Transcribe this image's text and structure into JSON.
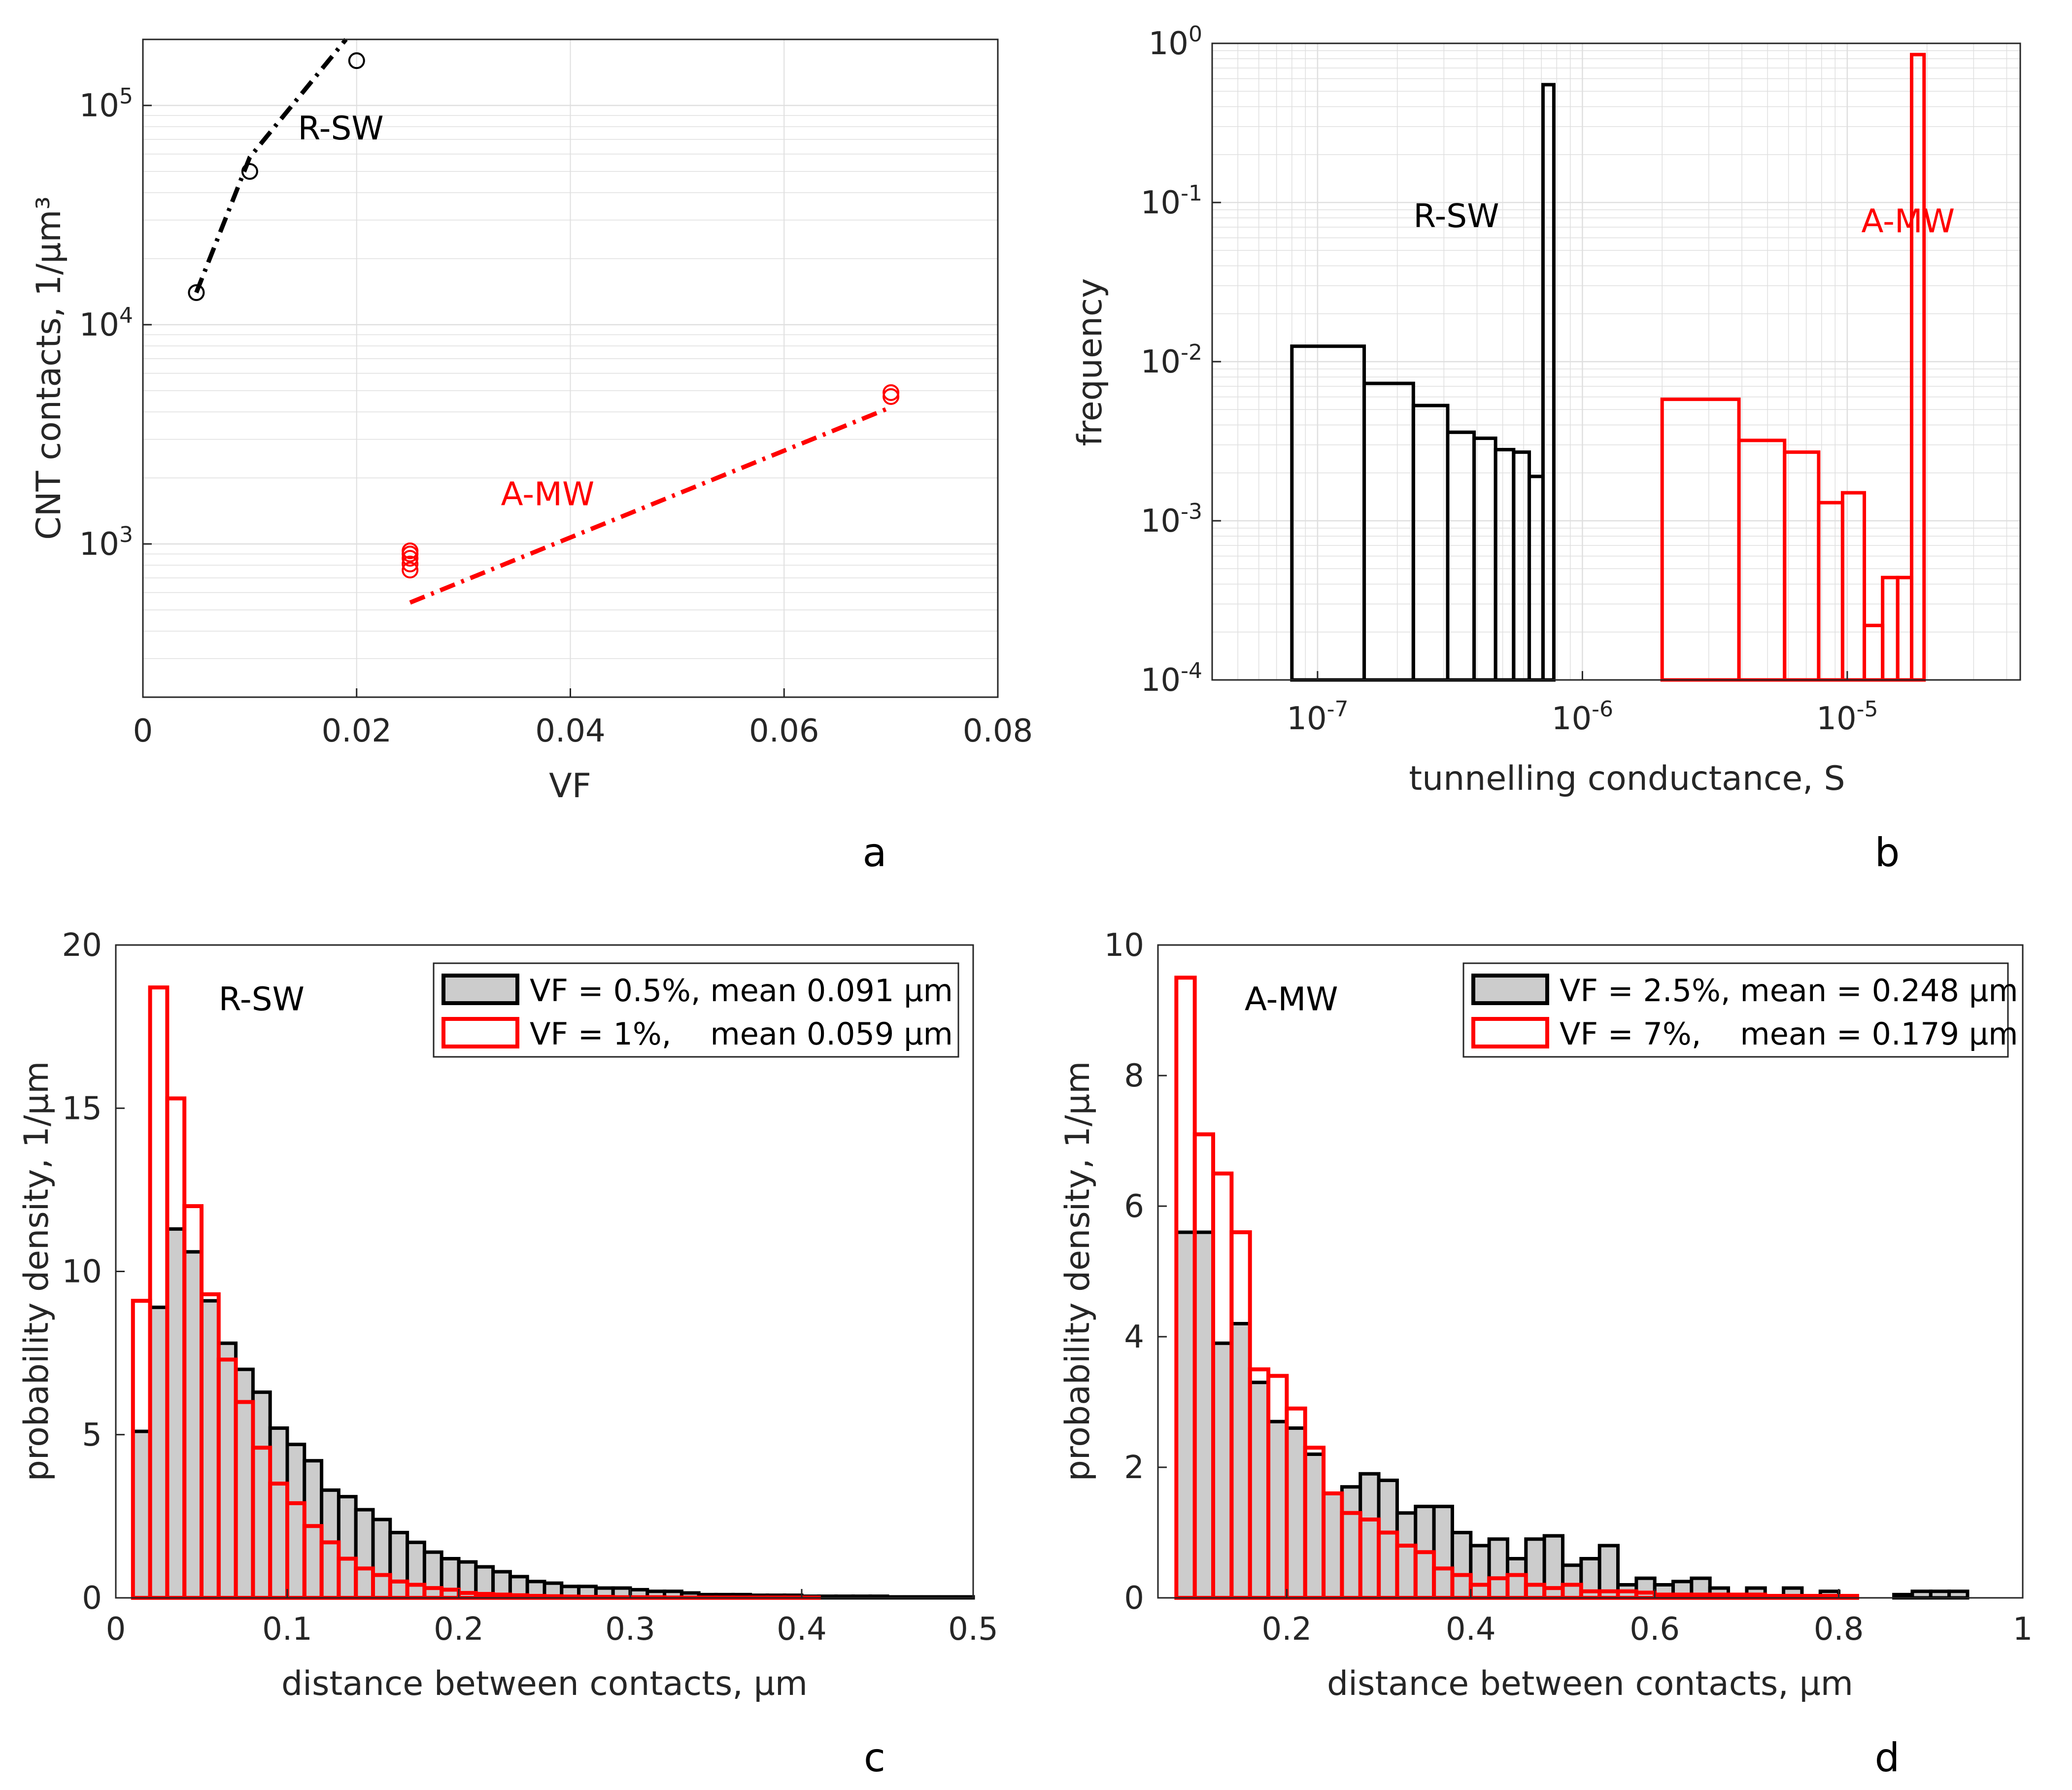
{
  "colors": {
    "black": "#000000",
    "red": "#ff0000",
    "grid": "#dfdfdf",
    "fill": "#cccccc"
  },
  "panel_labels": [
    "a",
    "b",
    "c",
    "d"
  ],
  "chart_data": [
    {
      "panel": "a",
      "type": "scatter",
      "xlabel": "VF",
      "ylabel": "CNT contacts, 1/µm³",
      "xlim": [
        0,
        0.08
      ],
      "ylim": [
        200,
        200000
      ],
      "yscale": "log",
      "grid": true,
      "xticks": [
        0,
        0.02,
        0.04,
        0.06,
        0.08
      ],
      "xtick_labels": [
        "0",
        "0.02",
        "0.04",
        "0.06",
        "0.08"
      ],
      "ytick_labels": [
        {
          "value": 1000,
          "base": "10",
          "exp": "3"
        },
        {
          "value": 10000,
          "base": "10",
          "exp": "4"
        },
        {
          "value": 100000,
          "base": "10",
          "exp": "5"
        }
      ],
      "series": [
        {
          "name": "R-SW",
          "color": "#000000",
          "points": [
            {
              "x": 0.005,
              "y": 14000
            },
            {
              "x": 0.01,
              "y": 50000
            },
            {
              "x": 0.02,
              "y": 160000
            }
          ],
          "fit": [
            {
              "x": 0.005,
              "y": 14000
            },
            {
              "x": 0.01,
              "y": 58000
            },
            {
              "x": 0.019,
              "y": 200000
            }
          ],
          "label": "R-SW",
          "label_at": {
            "x": 0.0145,
            "y": 70000
          }
        },
        {
          "name": "A-MW",
          "color": "#ff0000",
          "points": [
            {
              "x": 0.025,
              "y": 760
            },
            {
              "x": 0.025,
              "y": 810
            },
            {
              "x": 0.025,
              "y": 860
            },
            {
              "x": 0.025,
              "y": 900
            },
            {
              "x": 0.025,
              "y": 930
            },
            {
              "x": 0.07,
              "y": 4700
            },
            {
              "x": 0.07,
              "y": 4900
            }
          ],
          "fit": [
            {
              "x": 0.025,
              "y": 540
            },
            {
              "x": 0.07,
              "y": 4200
            }
          ],
          "label": "A-MW",
          "label_at": {
            "x": 0.0335,
            "y": 1500
          }
        }
      ]
    },
    {
      "panel": "b",
      "type": "bar",
      "xlabel": "tunnelling conductance, S",
      "ylabel": "frequency",
      "xscale": "log",
      "yscale": "log",
      "xlim": [
        4e-08,
        4.5e-05
      ],
      "ylim": [
        0.0001,
        1
      ],
      "grid": true,
      "xtick_labels": [
        {
          "value": 1e-07,
          "base": "10",
          "exp": "-7"
        },
        {
          "value": 1e-06,
          "base": "10",
          "exp": "-6"
        },
        {
          "value": 1e-05,
          "base": "10",
          "exp": "-5"
        }
      ],
      "ytick_labels": [
        {
          "value": 0.0001,
          "base": "10",
          "exp": "-4"
        },
        {
          "value": 0.001,
          "base": "10",
          "exp": "-3"
        },
        {
          "value": 0.01,
          "base": "10",
          "exp": "-2"
        },
        {
          "value": 0.1,
          "base": "10",
          "exp": "-1"
        },
        {
          "value": 1,
          "base": "10",
          "exp": "0"
        }
      ],
      "series": [
        {
          "name": "R-SW",
          "color": "#000000",
          "edges": [
            8e-08,
            1.5e-07,
            2.3e-07,
            3.1e-07,
            3.9e-07,
            4.7e-07,
            5.5e-07,
            6.3e-07,
            7.1e-07,
            7.8e-07
          ],
          "values": [
            0.0125,
            0.0073,
            0.0053,
            0.0036,
            0.0033,
            0.0028,
            0.0027,
            0.0019,
            0.55
          ],
          "label": "R-SW",
          "label_at": {
            "x": 2.3e-07,
            "y": 0.07
          }
        },
        {
          "name": "A-MW",
          "color": "#ff0000",
          "edges": [
            2e-06,
            3.9e-06,
            5.8e-06,
            7.8e-06,
            9.6e-06,
            1.16e-05,
            1.36e-05,
            1.55e-05,
            1.75e-05,
            1.95e-05
          ],
          "values": [
            0.0058,
            0.0032,
            0.0027,
            0.0013,
            0.0015,
            0.00022,
            0.00044,
            0.00044,
            0.85
          ],
          "label": "A-MW",
          "label_at": {
            "x": 1.13e-05,
            "y": 0.065
          }
        }
      ]
    },
    {
      "panel": "c",
      "type": "bar",
      "title_annotation": "R-SW",
      "xlabel": "distance between contacts, µm",
      "ylabel": "probability density, 1/µm",
      "xlim": [
        0,
        0.5
      ],
      "ylim": [
        0,
        20
      ],
      "grid": false,
      "xticks": [
        0,
        0.1,
        0.2,
        0.3,
        0.4,
        0.5
      ],
      "xtick_labels": [
        "0",
        "0.1",
        "0.2",
        "0.3",
        "0.4",
        "0.5"
      ],
      "yticks": [
        0,
        5,
        10,
        15,
        20
      ],
      "ytick_labels": [
        "0",
        "5",
        "10",
        "15",
        "20"
      ],
      "legend": [
        "VF = 0.5%, mean 0.091 µm",
        "VF = 1%,    mean 0.059 µm"
      ],
      "legend_position": "top-right",
      "annotation_at": {
        "x": 0.085,
        "y": 18
      },
      "series": [
        {
          "name": "VF = 0.5%",
          "style": "filled-gray-black-edge",
          "start": 0.01,
          "width": 0.01,
          "values": [
            5.1,
            8.9,
            11.3,
            10.6,
            9.1,
            7.8,
            7.0,
            6.3,
            5.2,
            4.7,
            4.2,
            3.3,
            3.1,
            2.7,
            2.4,
            2.0,
            1.7,
            1.4,
            1.2,
            1.1,
            0.95,
            0.8,
            0.65,
            0.5,
            0.45,
            0.35,
            0.35,
            0.3,
            0.3,
            0.25,
            0.2,
            0.2,
            0.15,
            0.1,
            0.1,
            0.1,
            0.08,
            0.08,
            0.08,
            0.05,
            0.05,
            0.05,
            0.05,
            0.05,
            0.03,
            0.03,
            0.03,
            0.03,
            0.03
          ]
        },
        {
          "name": "VF = 1%",
          "style": "red-outline",
          "start": 0.01,
          "width": 0.01,
          "values": [
            9.1,
            18.7,
            15.3,
            12.0,
            9.3,
            7.3,
            6.0,
            4.6,
            3.5,
            2.9,
            2.2,
            1.7,
            1.2,
            0.9,
            0.7,
            0.5,
            0.4,
            0.3,
            0.25,
            0.15,
            0.12,
            0.1,
            0.08,
            0.06,
            0.05,
            0.04,
            0.03,
            0.03,
            0.02,
            0.02,
            0.02,
            0.01,
            0.01,
            0.01,
            0.01,
            0.01,
            0.01,
            0.01,
            0.01,
            0.01,
            0.0,
            0.0,
            0.0,
            0.0,
            0.0,
            0.0,
            0.0,
            0.0,
            0.0
          ]
        }
      ]
    },
    {
      "panel": "d",
      "type": "bar",
      "title_annotation": "A-MW",
      "xlabel": "distance between contacts, µm",
      "ylabel": "probability density, 1/µm",
      "xlim": [
        0.06,
        1.0
      ],
      "ylim": [
        0,
        10
      ],
      "grid": false,
      "xticks": [
        0.2,
        0.4,
        0.6,
        0.8,
        1.0
      ],
      "xtick_labels": [
        "0.2",
        "0.4",
        "0.6",
        "0.8",
        "1"
      ],
      "yticks": [
        0,
        2,
        4,
        6,
        8,
        10
      ],
      "ytick_labels": [
        "0",
        "2",
        "4",
        "6",
        "8",
        "10"
      ],
      "legend": [
        "VF = 2.5%, mean = 0.248 µm",
        "VF = 7%,    mean = 0.179 µm"
      ],
      "legend_position": "top-right",
      "annotation_at": {
        "x": 0.205,
        "y": 9.0
      },
      "series": [
        {
          "name": "VF = 2.5%",
          "style": "filled-gray-black-edge",
          "start": 0.08,
          "width": 0.02,
          "values": [
            5.6,
            5.6,
            3.9,
            4.2,
            3.3,
            2.7,
            2.6,
            2.2,
            1.6,
            1.7,
            1.9,
            1.8,
            1.3,
            1.4,
            1.4,
            1.0,
            0.8,
            0.9,
            0.6,
            0.9,
            0.95,
            0.5,
            0.6,
            0.8,
            0.2,
            0.3,
            0.2,
            0.25,
            0.3,
            0.15,
            0.0,
            0.15,
            0.0,
            0.15,
            0.0,
            0.1,
            0.0,
            0.0,
            0.0,
            0.05,
            0.1,
            0.1,
            0.1
          ]
        },
        {
          "name": "VF = 7%",
          "style": "red-outline",
          "start": 0.08,
          "width": 0.02,
          "values": [
            9.5,
            7.1,
            6.5,
            5.6,
            3.5,
            3.4,
            2.9,
            2.3,
            1.6,
            1.3,
            1.2,
            1.0,
            0.8,
            0.7,
            0.45,
            0.35,
            0.2,
            0.3,
            0.35,
            0.2,
            0.15,
            0.2,
            0.1,
            0.1,
            0.1,
            0.08,
            0.05,
            0.05,
            0.05,
            0.05,
            0.05,
            0.05,
            0.03,
            0.03,
            0.03,
            0.03,
            0.03,
            0.0,
            0.0,
            0.0,
            0.0,
            0.0,
            0.0
          ]
        }
      ]
    }
  ]
}
